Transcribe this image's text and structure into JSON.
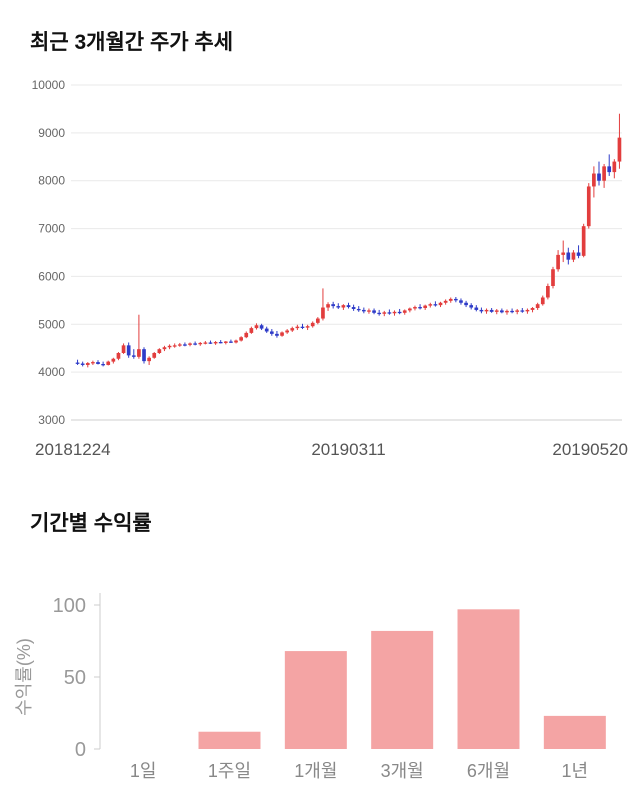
{
  "chart_data": [
    {
      "type": "candlestick",
      "title": "최근 3개월간 주가 추세",
      "ylim": [
        3000,
        10000
      ],
      "yticks": [
        3000,
        4000,
        5000,
        6000,
        7000,
        8000,
        9000,
        10000
      ],
      "xticks": [
        "20181224",
        "20190311",
        "20190520"
      ],
      "up_color": "#e23d3d",
      "down_color": "#2e3bc8",
      "grid_color": "#e9e9e9",
      "axis_text_color": "#666666",
      "xlabel_color": "#555555",
      "candles": [
        [
          4200,
          4260,
          4150,
          4180
        ],
        [
          4180,
          4220,
          4120,
          4150
        ],
        [
          4150,
          4210,
          4100,
          4190
        ],
        [
          4190,
          4240,
          4150,
          4210
        ],
        [
          4210,
          4250,
          4160,
          4170
        ],
        [
          4170,
          4220,
          4120,
          4150
        ],
        [
          4150,
          4240,
          4140,
          4220
        ],
        [
          4220,
          4300,
          4180,
          4280
        ],
        [
          4280,
          4420,
          4250,
          4400
        ],
        [
          4400,
          4600,
          4380,
          4560
        ],
        [
          4560,
          4620,
          4300,
          4350
        ],
        [
          4350,
          4480,
          4280,
          4320
        ],
        [
          4320,
          5200,
          4280,
          4480
        ],
        [
          4480,
          4520,
          4180,
          4230
        ],
        [
          4230,
          4330,
          4150,
          4300
        ],
        [
          4300,
          4420,
          4280,
          4400
        ],
        [
          4400,
          4500,
          4380,
          4480
        ],
        [
          4480,
          4550,
          4440,
          4520
        ],
        [
          4520,
          4580,
          4480,
          4550
        ],
        [
          4550,
          4600,
          4510,
          4560
        ],
        [
          4560,
          4610,
          4530,
          4580
        ],
        [
          4580,
          4620,
          4540,
          4570
        ],
        [
          4570,
          4620,
          4540,
          4600
        ],
        [
          4600,
          4640,
          4560,
          4590
        ],
        [
          4590,
          4630,
          4550,
          4610
        ],
        [
          4610,
          4650,
          4580,
          4620
        ],
        [
          4620,
          4660,
          4590,
          4600
        ],
        [
          4600,
          4650,
          4570,
          4630
        ],
        [
          4630,
          4670,
          4600,
          4610
        ],
        [
          4610,
          4650,
          4580,
          4640
        ],
        [
          4640,
          4680,
          4610,
          4620
        ],
        [
          4620,
          4680,
          4600,
          4660
        ],
        [
          4660,
          4750,
          4640,
          4730
        ],
        [
          4730,
          4850,
          4710,
          4820
        ],
        [
          4820,
          4950,
          4800,
          4920
        ],
        [
          4920,
          5020,
          4890,
          4980
        ],
        [
          4980,
          5010,
          4880,
          4910
        ],
        [
          4910,
          4950,
          4820,
          4850
        ],
        [
          4850,
          4900,
          4760,
          4800
        ],
        [
          4800,
          4860,
          4720,
          4760
        ],
        [
          4760,
          4850,
          4740,
          4830
        ],
        [
          4830,
          4900,
          4800,
          4870
        ],
        [
          4870,
          4950,
          4840,
          4920
        ],
        [
          4920,
          4990,
          4880,
          4950
        ],
        [
          4950,
          5010,
          4900,
          4930
        ],
        [
          4930,
          4990,
          4880,
          4960
        ],
        [
          4960,
          5060,
          4930,
          5030
        ],
        [
          5030,
          5150,
          5000,
          5120
        ],
        [
          5120,
          5750,
          5080,
          5350
        ],
        [
          5350,
          5460,
          5280,
          5420
        ],
        [
          5420,
          5470,
          5330,
          5380
        ],
        [
          5380,
          5440,
          5320,
          5350
        ],
        [
          5350,
          5420,
          5300,
          5400
        ],
        [
          5400,
          5450,
          5330,
          5360
        ],
        [
          5360,
          5410,
          5280,
          5320
        ],
        [
          5320,
          5380,
          5260,
          5300
        ],
        [
          5300,
          5350,
          5230,
          5270
        ],
        [
          5270,
          5330,
          5220,
          5290
        ],
        [
          5290,
          5330,
          5210,
          5240
        ],
        [
          5240,
          5300,
          5180,
          5220
        ],
        [
          5220,
          5280,
          5170,
          5250
        ],
        [
          5250,
          5310,
          5200,
          5230
        ],
        [
          5230,
          5290,
          5180,
          5260
        ],
        [
          5260,
          5320,
          5210,
          5240
        ],
        [
          5240,
          5310,
          5200,
          5290
        ],
        [
          5290,
          5350,
          5250,
          5330
        ],
        [
          5330,
          5390,
          5290,
          5360
        ],
        [
          5360,
          5420,
          5310,
          5340
        ],
        [
          5340,
          5410,
          5300,
          5390
        ],
        [
          5390,
          5450,
          5350,
          5420
        ],
        [
          5420,
          5480,
          5370,
          5400
        ],
        [
          5400,
          5470,
          5360,
          5450
        ],
        [
          5450,
          5520,
          5410,
          5490
        ],
        [
          5490,
          5560,
          5450,
          5530
        ],
        [
          5530,
          5570,
          5460,
          5500
        ],
        [
          5500,
          5540,
          5410,
          5450
        ],
        [
          5450,
          5490,
          5360,
          5400
        ],
        [
          5400,
          5440,
          5310,
          5350
        ],
        [
          5350,
          5400,
          5270,
          5300
        ],
        [
          5300,
          5350,
          5230,
          5270
        ],
        [
          5270,
          5330,
          5220,
          5300
        ],
        [
          5300,
          5340,
          5240,
          5260
        ],
        [
          5260,
          5320,
          5210,
          5290
        ],
        [
          5290,
          5330,
          5230,
          5250
        ],
        [
          5250,
          5310,
          5200,
          5280
        ],
        [
          5280,
          5330,
          5230,
          5260
        ],
        [
          5260,
          5320,
          5210,
          5290
        ],
        [
          5290,
          5340,
          5240,
          5270
        ],
        [
          5270,
          5330,
          5220,
          5300
        ],
        [
          5300,
          5360,
          5250,
          5340
        ],
        [
          5340,
          5450,
          5300,
          5420
        ],
        [
          5420,
          5600,
          5390,
          5560
        ],
        [
          5560,
          5850,
          5520,
          5800
        ],
        [
          5800,
          6200,
          5750,
          6150
        ],
        [
          6150,
          6550,
          6100,
          6450
        ],
        [
          6450,
          6750,
          6300,
          6500
        ],
        [
          6500,
          6600,
          6250,
          6350
        ],
        [
          6350,
          6550,
          6300,
          6500
        ],
        [
          6500,
          6650,
          6380,
          6430
        ],
        [
          6430,
          7100,
          6400,
          7050
        ],
        [
          7050,
          7950,
          7000,
          7880
        ],
        [
          7880,
          8300,
          7650,
          8150
        ],
        [
          8150,
          8400,
          7900,
          8000
        ],
        [
          8000,
          8350,
          7850,
          8300
        ],
        [
          8300,
          8550,
          8100,
          8180
        ],
        [
          8180,
          8450,
          8050,
          8400
        ],
        [
          8400,
          9400,
          8250,
          8900
        ]
      ]
    },
    {
      "type": "bar",
      "title": "기간별 수익률",
      "categories": [
        "1일",
        "1주일",
        "1개월",
        "3개월",
        "6개월",
        "1년"
      ],
      "values": [
        0,
        12,
        68,
        82,
        97,
        23
      ],
      "ylabel": "수익률(%)",
      "yticks": [
        0,
        50,
        100
      ],
      "ylim": [
        0,
        100
      ],
      "bar_color": "#f4a4a4",
      "axis_color": "#cccccc",
      "tick_text_color": "#999999",
      "category_text_color": "#888888"
    }
  ]
}
